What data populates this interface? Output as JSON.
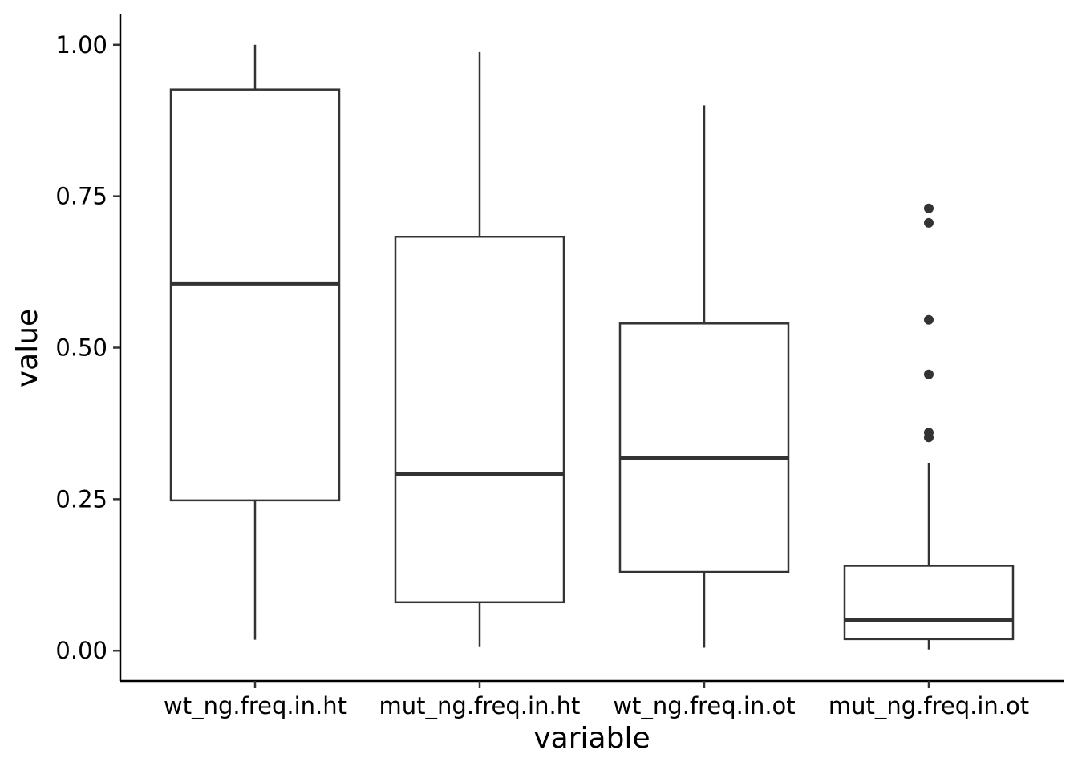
{
  "chart_data": {
    "type": "boxplot",
    "xlabel": "variable",
    "ylabel": "value",
    "ylim": [
      -0.05,
      1.05
    ],
    "yticks": [
      {
        "value": 0.0,
        "label": "0.00"
      },
      {
        "value": 0.25,
        "label": "0.25"
      },
      {
        "value": 0.5,
        "label": "0.50"
      },
      {
        "value": 0.75,
        "label": "0.75"
      },
      {
        "value": 1.0,
        "label": "1.00"
      }
    ],
    "grid": false,
    "legend": "none",
    "colors": {
      "box_stroke": "#333333",
      "box_fill": "#ffffff",
      "axis": "#000000"
    },
    "categories": [
      "wt_ng.freq.in.ht",
      "mut_ng.freq.in.ht",
      "wt_ng.freq.in.ot",
      "mut_ng.freq.in.ot"
    ],
    "boxes": [
      {
        "category": "wt_ng.freq.in.ht",
        "whisker_low": 0.018,
        "q1": 0.248,
        "median": 0.606,
        "q3": 0.926,
        "whisker_high": 1.0,
        "outliers": []
      },
      {
        "category": "mut_ng.freq.in.ht",
        "whisker_low": 0.006,
        "q1": 0.08,
        "median": 0.292,
        "q3": 0.683,
        "whisker_high": 0.988,
        "outliers": []
      },
      {
        "category": "wt_ng.freq.in.ot",
        "whisker_low": 0.005,
        "q1": 0.13,
        "median": 0.318,
        "q3": 0.54,
        "whisker_high": 0.9,
        "outliers": []
      },
      {
        "category": "mut_ng.freq.in.ot",
        "whisker_low": 0.002,
        "q1": 0.019,
        "median": 0.051,
        "q3": 0.14,
        "whisker_high": 0.31,
        "outliers": [
          0.73,
          0.706,
          0.546,
          0.456,
          0.36,
          0.352
        ]
      }
    ]
  }
}
